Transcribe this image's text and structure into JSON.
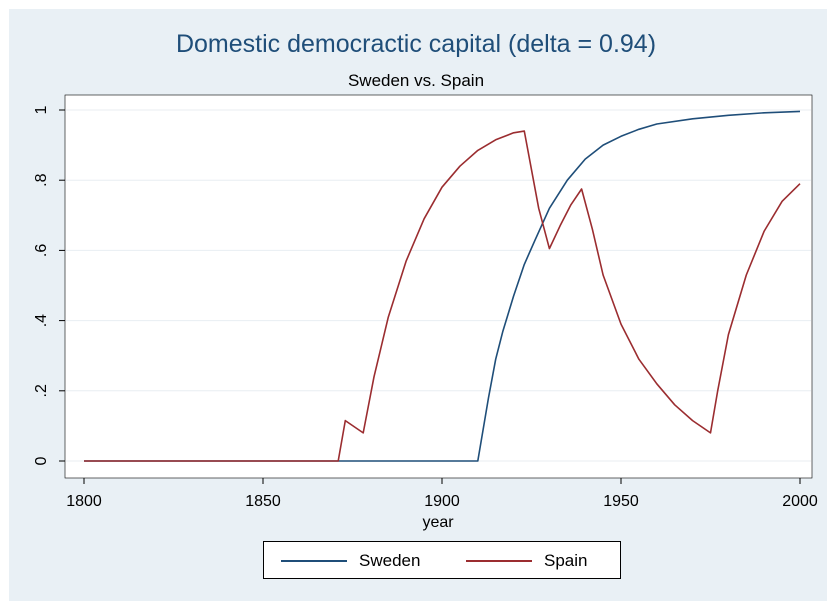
{
  "chart_data": {
    "type": "line",
    "title": "Domestic democractic capital (delta = 0.94)",
    "subtitle": "Sweden  vs. Spain",
    "xlabel": "year",
    "ylabel": "",
    "xlim": [
      1800,
      2000
    ],
    "ylim": [
      0,
      1
    ],
    "x_ticks": [
      "1800",
      "1850",
      "1900",
      "1950",
      "2000"
    ],
    "y_ticks": [
      "0",
      ".2",
      ".4",
      ".6",
      ".8",
      "1"
    ],
    "grid": true,
    "legend": "bottom",
    "series": [
      {
        "name": "Sweden",
        "color": "#1f4e79",
        "points": [
          [
            1800,
            0
          ],
          [
            1910,
            0
          ],
          [
            1913,
            0.18
          ],
          [
            1915,
            0.29
          ],
          [
            1917,
            0.37
          ],
          [
            1920,
            0.47
          ],
          [
            1923,
            0.56
          ],
          [
            1926,
            0.63
          ],
          [
            1930,
            0.72
          ],
          [
            1935,
            0.8
          ],
          [
            1940,
            0.86
          ],
          [
            1945,
            0.9
          ],
          [
            1950,
            0.925
          ],
          [
            1955,
            0.945
          ],
          [
            1960,
            0.96
          ],
          [
            1970,
            0.975
          ],
          [
            1980,
            0.985
          ],
          [
            1990,
            0.992
          ],
          [
            2000,
            0.996
          ]
        ]
      },
      {
        "name": "Spain",
        "color": "#9b2d30",
        "points": [
          [
            1800,
            0
          ],
          [
            1871,
            0
          ],
          [
            1873,
            0.115
          ],
          [
            1878,
            0.08
          ],
          [
            1881,
            0.24
          ],
          [
            1885,
            0.41
          ],
          [
            1890,
            0.57
          ],
          [
            1895,
            0.69
          ],
          [
            1900,
            0.78
          ],
          [
            1905,
            0.84
          ],
          [
            1910,
            0.885
          ],
          [
            1915,
            0.915
          ],
          [
            1920,
            0.935
          ],
          [
            1923,
            0.94
          ],
          [
            1927,
            0.72
          ],
          [
            1930,
            0.605
          ],
          [
            1933,
            0.67
          ],
          [
            1936,
            0.73
          ],
          [
            1939,
            0.775
          ],
          [
            1942,
            0.66
          ],
          [
            1945,
            0.53
          ],
          [
            1950,
            0.39
          ],
          [
            1955,
            0.29
          ],
          [
            1960,
            0.22
          ],
          [
            1965,
            0.16
          ],
          [
            1970,
            0.115
          ],
          [
            1975,
            0.08
          ],
          [
            1977,
            0.2
          ],
          [
            1980,
            0.36
          ],
          [
            1985,
            0.53
          ],
          [
            1990,
            0.655
          ],
          [
            1995,
            0.74
          ],
          [
            2000,
            0.79
          ]
        ]
      }
    ]
  }
}
